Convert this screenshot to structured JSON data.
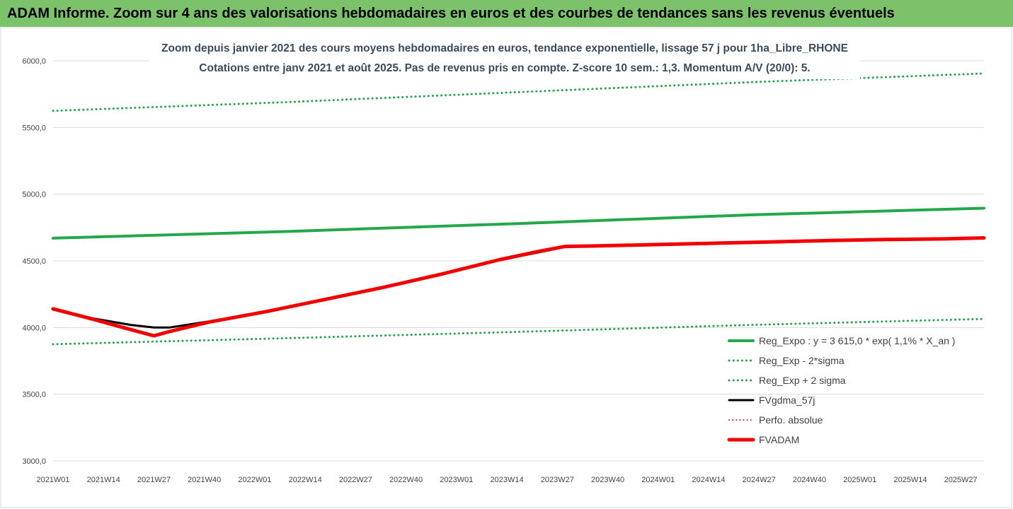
{
  "header": {
    "title": "ADAM Informe. Zoom sur 4 ans des valorisations hebdomadaires en euros et des courbes de tendances sans les revenus éventuels"
  },
  "chart_data": {
    "type": "line",
    "subtitle_line1": "Zoom depuis janvier 2021 des cours moyens hebdomadaires en euros, tendance exponentielle, lissage 57 j pour 1ha_Libre_RHONE",
    "subtitle_line2": "Cotations entre janv 2021 et août 2025.  Pas de revenus pris en compte. Z-score 10 sem.: 1,3. Momentum A/V (20/0): 5.",
    "y_ticks": [
      "6000,0",
      "5500,0",
      "5000,0",
      "4500,0",
      "4000,0",
      "3500,0",
      "3000,0"
    ],
    "ylim": [
      3000,
      6000
    ],
    "x_tick_labels": [
      "2021W01",
      "2021W14",
      "2021W27",
      "2021W40",
      "2022W01",
      "2022W14",
      "2022W27",
      "2022W40",
      "2023W01",
      "2023W14",
      "2023W27",
      "2023W40",
      "2024W01",
      "2024W14",
      "2024W27",
      "2024W40",
      "2025W01",
      "2025W14",
      "2025W27"
    ],
    "x_tick_positions": [
      0,
      13,
      26,
      39,
      52,
      65,
      78,
      91,
      104,
      117,
      130,
      143,
      156,
      169,
      182,
      195,
      208,
      221,
      234
    ],
    "x_range": [
      0,
      240
    ],
    "grid": "horizontal",
    "legend_position": "right",
    "series": [
      {
        "name": "Reg_Expo : y = 3 615,0 * exp( 1,1% *  X_an )",
        "color": "#22a84a",
        "style": "solid",
        "width": 4,
        "points": [
          [
            0,
            4670
          ],
          [
            60,
            4720
          ],
          [
            120,
            4780
          ],
          [
            180,
            4845
          ],
          [
            240,
            4895
          ]
        ]
      },
      {
        "name": "Reg_Exp - 2*sigma",
        "color": "#22a84a",
        "style": "dotted",
        "width": 3,
        "points": [
          [
            0,
            3875
          ],
          [
            60,
            3920
          ],
          [
            120,
            3968
          ],
          [
            180,
            4020
          ],
          [
            240,
            4065
          ]
        ]
      },
      {
        "name": "Reg_Exp + 2 sigma",
        "color": "#22a84a",
        "style": "dotted",
        "width": 3,
        "points": [
          [
            0,
            5625
          ],
          [
            60,
            5690
          ],
          [
            120,
            5765
          ],
          [
            180,
            5840
          ],
          [
            240,
            5905
          ]
        ]
      },
      {
        "name": "FVgdma_57j",
        "color": "#000000",
        "style": "solid",
        "width": 3,
        "points": [
          [
            0,
            4140
          ],
          [
            10,
            4070
          ],
          [
            20,
            4020
          ],
          [
            26,
            4000
          ],
          [
            30,
            4000
          ],
          [
            40,
            4045
          ],
          [
            55,
            4120
          ],
          [
            70,
            4210
          ],
          [
            85,
            4300
          ],
          [
            100,
            4400
          ],
          [
            115,
            4505
          ],
          [
            128,
            4580
          ],
          [
            132,
            4605
          ],
          [
            140,
            4612
          ],
          [
            155,
            4622
          ],
          [
            170,
            4632
          ],
          [
            185,
            4642
          ],
          [
            200,
            4652
          ],
          [
            215,
            4660
          ],
          [
            230,
            4665
          ],
          [
            240,
            4672
          ]
        ]
      },
      {
        "name": "Perfo. absolue",
        "color": "#e01010",
        "style": "dotted",
        "width": 2,
        "points": []
      },
      {
        "name": "FVADAM",
        "color": "#f00000",
        "style": "solid",
        "width": 5,
        "points": [
          [
            0,
            4140
          ],
          [
            10,
            4065
          ],
          [
            20,
            3985
          ],
          [
            26,
            3938
          ],
          [
            30,
            3970
          ],
          [
            40,
            4040
          ],
          [
            55,
            4120
          ],
          [
            70,
            4210
          ],
          [
            85,
            4300
          ],
          [
            100,
            4400
          ],
          [
            115,
            4508
          ],
          [
            125,
            4570
          ],
          [
            132,
            4608
          ],
          [
            140,
            4612
          ],
          [
            155,
            4622
          ],
          [
            170,
            4632
          ],
          [
            185,
            4642
          ],
          [
            200,
            4652
          ],
          [
            215,
            4660
          ],
          [
            230,
            4665
          ],
          [
            240,
            4672
          ]
        ]
      }
    ]
  }
}
